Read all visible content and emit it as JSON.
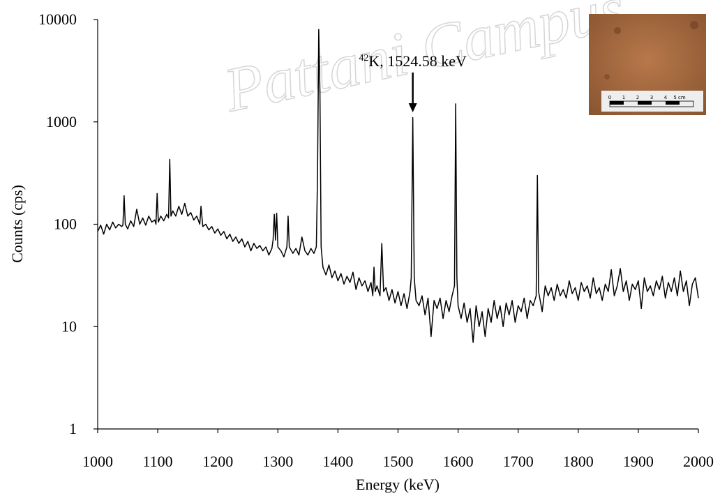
{
  "chart_data": {
    "type": "line",
    "xlabel": "Energy (keV)",
    "ylabel": "Counts (cps)",
    "xlim": [
      1000,
      2000
    ],
    "ylim": [
      1,
      10000
    ],
    "log_y": true,
    "grid": false,
    "xticks": [
      1000,
      1100,
      1200,
      1300,
      1400,
      1500,
      1600,
      1700,
      1800,
      1900,
      2000
    ],
    "yticks": [
      1,
      10,
      100,
      1000,
      10000
    ],
    "annotation": {
      "superscript": "42",
      "text": "K, 1524.58 keV",
      "x": 1524.58
    },
    "watermark": "Pattani Campus",
    "inset_scale_labels": [
      "0",
      "1",
      "2",
      "3",
      "4",
      "5 cm"
    ],
    "series": [
      {
        "color": "#000000",
        "x": [
          1000,
          1005,
          1010,
          1015,
          1020,
          1025,
          1030,
          1035,
          1040,
          1042,
          1044,
          1046,
          1050,
          1055,
          1060,
          1065,
          1070,
          1075,
          1080,
          1085,
          1090,
          1095,
          1097,
          1099,
          1101,
          1105,
          1110,
          1115,
          1118,
          1120,
          1122,
          1125,
          1130,
          1135,
          1140,
          1145,
          1150,
          1155,
          1160,
          1165,
          1170,
          1172,
          1175,
          1180,
          1185,
          1190,
          1195,
          1200,
          1205,
          1210,
          1215,
          1220,
          1225,
          1230,
          1235,
          1240,
          1245,
          1250,
          1255,
          1260,
          1265,
          1270,
          1275,
          1280,
          1285,
          1290,
          1292,
          1294,
          1296,
          1298,
          1300,
          1305,
          1310,
          1315,
          1317,
          1319,
          1325,
          1330,
          1335,
          1340,
          1345,
          1350,
          1355,
          1360,
          1364,
          1366,
          1368,
          1370,
          1372,
          1375,
          1380,
          1385,
          1390,
          1395,
          1400,
          1405,
          1410,
          1415,
          1420,
          1425,
          1430,
          1435,
          1440,
          1445,
          1450,
          1455,
          1458,
          1460,
          1462,
          1465,
          1470,
          1473,
          1476,
          1480,
          1485,
          1490,
          1495,
          1500,
          1505,
          1510,
          1515,
          1520,
          1522,
          1524.58,
          1527,
          1530,
          1535,
          1540,
          1545,
          1550,
          1555,
          1560,
          1565,
          1570,
          1575,
          1580,
          1585,
          1590,
          1594,
          1596,
          1598,
          1600,
          1605,
          1610,
          1615,
          1620,
          1625,
          1630,
          1635,
          1640,
          1645,
          1650,
          1655,
          1660,
          1665,
          1670,
          1675,
          1680,
          1685,
          1690,
          1695,
          1700,
          1705,
          1710,
          1715,
          1720,
          1725,
          1730,
          1732,
          1734,
          1740,
          1745,
          1750,
          1755,
          1760,
          1765,
          1770,
          1775,
          1780,
          1785,
          1790,
          1795,
          1800,
          1805,
          1810,
          1815,
          1820,
          1825,
          1830,
          1835,
          1840,
          1845,
          1850,
          1855,
          1860,
          1865,
          1870,
          1875,
          1880,
          1885,
          1890,
          1895,
          1900,
          1905,
          1910,
          1915,
          1920,
          1925,
          1930,
          1935,
          1940,
          1945,
          1950,
          1955,
          1960,
          1965,
          1970,
          1975,
          1980,
          1985,
          1990,
          1995,
          2000
        ],
        "values": [
          85,
          98,
          80,
          100,
          88,
          105,
          92,
          100,
          95,
          98,
          190,
          100,
          90,
          108,
          95,
          140,
          100,
          115,
          98,
          120,
          105,
          110,
          100,
          200,
          105,
          120,
          108,
          125,
          115,
          430,
          120,
          135,
          120,
          150,
          125,
          160,
          120,
          130,
          110,
          120,
          100,
          150,
          95,
          100,
          88,
          95,
          82,
          90,
          78,
          85,
          72,
          80,
          68,
          75,
          65,
          72,
          60,
          68,
          55,
          65,
          58,
          62,
          55,
          60,
          50,
          58,
          70,
          125,
          70,
          128,
          60,
          55,
          48,
          60,
          120,
          60,
          52,
          58,
          50,
          75,
          55,
          50,
          58,
          52,
          60,
          300,
          8000,
          2000,
          60,
          38,
          32,
          40,
          30,
          35,
          28,
          33,
          26,
          31,
          27,
          34,
          23,
          30,
          25,
          28,
          22,
          27,
          20,
          38,
          22,
          25,
          20,
          65,
          22,
          24,
          18,
          23,
          17,
          22,
          16,
          21,
          15,
          22,
          30,
          1100,
          30,
          18,
          16,
          20,
          13,
          19,
          8,
          18,
          15,
          19,
          12,
          18,
          14,
          20,
          25,
          1500,
          30,
          16,
          12,
          17,
          11,
          15,
          7,
          16,
          10,
          14,
          8,
          15,
          11,
          18,
          12,
          16,
          10,
          17,
          13,
          18,
          11,
          16,
          14,
          19,
          12,
          18,
          16,
          20,
          300,
          22,
          14,
          25,
          20,
          24,
          18,
          26,
          20,
          23,
          19,
          28,
          21,
          24,
          18,
          27,
          22,
          25,
          19,
          30,
          21,
          24,
          18,
          26,
          22,
          36,
          20,
          25,
          37,
          22,
          28,
          18,
          26,
          23,
          28,
          15,
          30,
          22,
          25,
          20,
          28,
          23,
          31,
          19,
          27,
          22,
          30,
          20,
          35,
          22,
          28,
          16,
          26,
          30,
          19
        ]
      }
    ]
  }
}
